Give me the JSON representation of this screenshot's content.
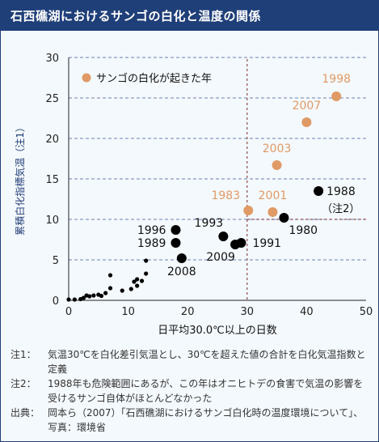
{
  "title": "石西礁湖におけるサンゴの白化と温度の関係",
  "colors": {
    "frame": "#1f3f79",
    "background": "#f4f9fd",
    "bleached": "#e09a66",
    "normal": "#000000",
    "grid": "#6e7fb8",
    "reference_line": "#8b4c4c"
  },
  "chart_data": {
    "type": "scatter",
    "title": "",
    "xlabel": "日平均30.0℃以上の日数",
    "ylabel": "累積白化指標気温（注1）",
    "xlim": [
      0,
      50
    ],
    "ylim": [
      0,
      30
    ],
    "xticks": [
      "0",
      "10",
      "20",
      "30",
      "40",
      "50"
    ],
    "yticks": [
      "0",
      "5",
      "10",
      "15",
      "20",
      "25",
      "30"
    ],
    "grid": "horizontal dashed",
    "reference_lines": {
      "x": 30,
      "y": 10
    },
    "legend": {
      "label": "サンゴの白化が起きた年",
      "position": "top-left"
    },
    "labeled_points": [
      {
        "year": "1998",
        "x": 45,
        "y": 25.2,
        "bleached": true
      },
      {
        "year": "2007",
        "x": 40,
        "y": 22,
        "bleached": true
      },
      {
        "year": "2003",
        "x": 35,
        "y": 16.7,
        "bleached": true
      },
      {
        "year": "2001",
        "x": 34.3,
        "y": 10.9,
        "bleached": true
      },
      {
        "year": "1983",
        "x": 30.2,
        "y": 11.1,
        "bleached": true
      },
      {
        "year": "1988",
        "x": 42,
        "y": 13.5,
        "bleached": false,
        "note": "（注2）"
      },
      {
        "year": "1980",
        "x": 36.2,
        "y": 10.2,
        "bleached": false
      },
      {
        "year": "1993",
        "x": 26,
        "y": 7.9,
        "bleached": false
      },
      {
        "year": "1991",
        "x": 29,
        "y": 7.1,
        "bleached": false
      },
      {
        "year": "2009",
        "x": 28,
        "y": 6.9,
        "bleached": false
      },
      {
        "year": "1996",
        "x": 18,
        "y": 8.7,
        "bleached": false
      },
      {
        "year": "1989",
        "x": 18,
        "y": 7.1,
        "bleached": false
      },
      {
        "year": "2008",
        "x": 19,
        "y": 5.2,
        "bleached": false
      }
    ],
    "small_points": [
      [
        0,
        0.1
      ],
      [
        1,
        0.1
      ],
      [
        2,
        0.15
      ],
      [
        2.5,
        0.3
      ],
      [
        3,
        0.6
      ],
      [
        3.5,
        0.5
      ],
      [
        4.2,
        0.6
      ],
      [
        5,
        0.7
      ],
      [
        5.5,
        0.55
      ],
      [
        6.2,
        0.9
      ],
      [
        7,
        1.5
      ],
      [
        7,
        3.1
      ],
      [
        9,
        1.2
      ],
      [
        10.5,
        1.4
      ],
      [
        11,
        2.3
      ],
      [
        11.5,
        2.6
      ],
      [
        11.5,
        1.8
      ],
      [
        12.3,
        2.4
      ],
      [
        13,
        3.3
      ],
      [
        13,
        4.9
      ]
    ]
  },
  "notes": [
    {
      "label": "注1：",
      "text": "気温30℃を白化差引気温とし、30℃を超えた値の合計を白化気温指数と定義"
    },
    {
      "label": "注2：",
      "text": "1988年も危険範囲にあるが、この年はオニヒトデの食害で気温の影響を受けるサンゴ自体がほとんどなかった"
    },
    {
      "label": "出典：",
      "text": "岡本ら（2007）「石西礁湖におけるサンゴ白化時の温度環境について」、写真：環境省"
    }
  ]
}
